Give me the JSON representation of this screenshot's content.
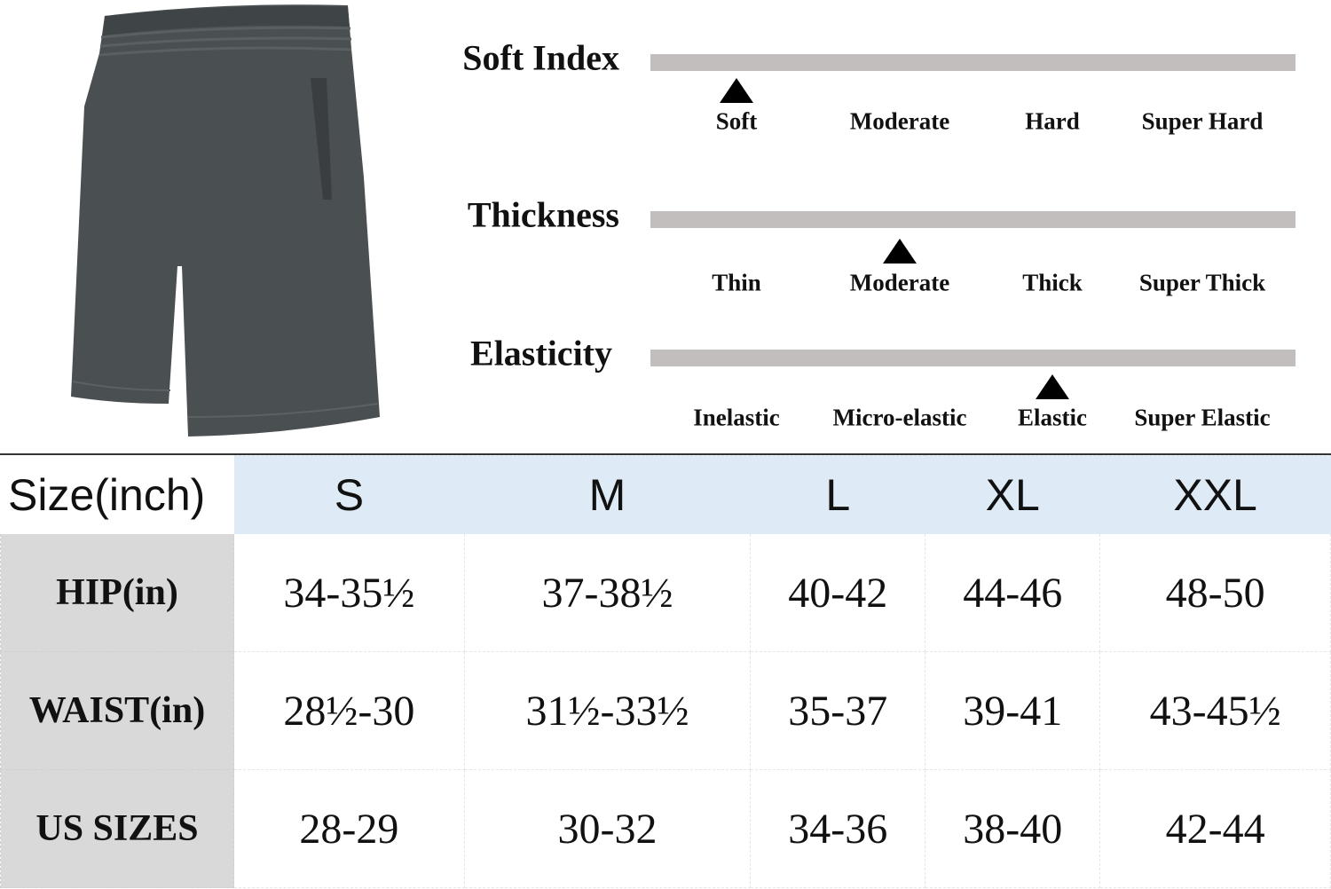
{
  "product_image": {
    "description_icon": "shorts-image",
    "color": "#4a4f52"
  },
  "scales": [
    {
      "title": "Soft Index",
      "options": [
        "Soft",
        "Moderate",
        "Hard",
        "Super Hard"
      ],
      "selected_index": 0
    },
    {
      "title": "Thickness",
      "options": [
        "Thin",
        "Moderate",
        "Thick",
        "Super Thick"
      ],
      "selected_index": 1
    },
    {
      "title": "Elasticity",
      "options": [
        "Inelastic",
        "Micro-elastic",
        "Elastic",
        "Super Elastic"
      ],
      "selected_index": 2
    }
  ],
  "colors": {
    "bar": "#c2bebd",
    "header_bg": "#deeaf6",
    "row_header_bg": "#d9d9d9"
  },
  "size_table": {
    "corner": "Size(inch)",
    "columns": [
      "S",
      "M",
      "L",
      "XL",
      "XXL"
    ],
    "rows": [
      {
        "label": "HIP(in)",
        "values": [
          "34-35½",
          "37-38½",
          "40-42",
          "44-46",
          "48-50"
        ]
      },
      {
        "label": "WAIST(in)",
        "values": [
          "28½-30",
          "31½-33½",
          "35-37",
          "39-41",
          "43-45½"
        ]
      },
      {
        "label": "US SIZES",
        "values": [
          "28-29",
          "30-32",
          "34-36",
          "38-40",
          "42-44"
        ]
      }
    ]
  }
}
